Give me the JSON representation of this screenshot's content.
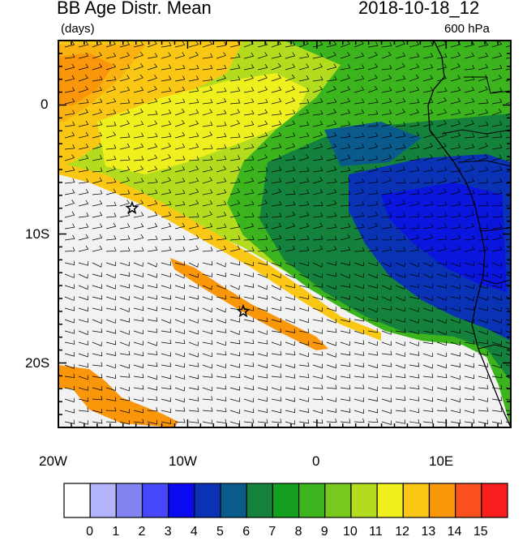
{
  "header": {
    "title": "BB Age Distr. Mean",
    "units": "(days)",
    "datetime": "2018-10-18_12",
    "level": "600 hPa"
  },
  "map": {
    "lon_range": [
      -20,
      15
    ],
    "lat_range": [
      -25,
      5
    ],
    "lon_ticks": [
      {
        "label": "20W",
        "value": -20
      },
      {
        "label": "10W",
        "value": -10
      },
      {
        "label": "0",
        "value": 0
      },
      {
        "label": "10E",
        "value": 10
      }
    ],
    "lat_ticks": [
      {
        "label": "0",
        "value": 0
      },
      {
        "label": "10S",
        "value": -10
      },
      {
        "label": "20S",
        "value": -20
      }
    ],
    "markers": [
      {
        "name": "star",
        "lon": -14.3,
        "lat": -8.0
      },
      {
        "name": "star",
        "lon": -5.7,
        "lat": -16.0
      }
    ]
  },
  "colorbar": {
    "labels": [
      "0",
      "1",
      "2",
      "3",
      "4",
      "5",
      "6",
      "7",
      "8",
      "9",
      "10",
      "11",
      "12",
      "13",
      "14",
      "15"
    ],
    "colors": [
      "#ffffff",
      "#b4b4fa",
      "#8282f0",
      "#4646fa",
      "#0a0af0",
      "#0a32b4",
      "#0a5a8c",
      "#14823c",
      "#14a01e",
      "#3cb41e",
      "#78c81e",
      "#b4dc1e",
      "#f0f01e",
      "#fac814",
      "#fa960a",
      "#fa501e",
      "#fa1e1e"
    ]
  }
}
